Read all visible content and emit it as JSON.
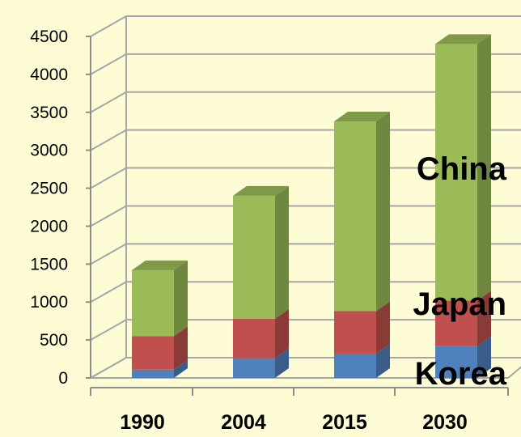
{
  "chart_data": {
    "type": "bar",
    "stacked": true,
    "three_d": true,
    "categories": [
      "1990",
      "2004",
      "2015",
      "2030"
    ],
    "series": [
      {
        "name": "Korea",
        "values": [
          110,
          260,
          320,
          420
        ],
        "color": "#4f81bd"
      },
      {
        "name": "Japan",
        "values": [
          440,
          520,
          560,
          600
        ],
        "color": "#c0504d"
      },
      {
        "name": "China",
        "values": [
          870,
          1620,
          2500,
          3380
        ],
        "color": "#9bbb59"
      }
    ],
    "y_ticks": [
      "0",
      "500",
      "1000",
      "1500",
      "2000",
      "2500",
      "3000",
      "3500",
      "4000",
      "4500"
    ],
    "ylim": [
      0,
      4500
    ],
    "grid": true,
    "legend": "inline labels at right",
    "title": "",
    "xlabel": "",
    "ylabel": ""
  },
  "colors": {
    "background": "#fdfcd5",
    "gridline": "#a6a6a6",
    "axis": "#8c8c8c"
  }
}
